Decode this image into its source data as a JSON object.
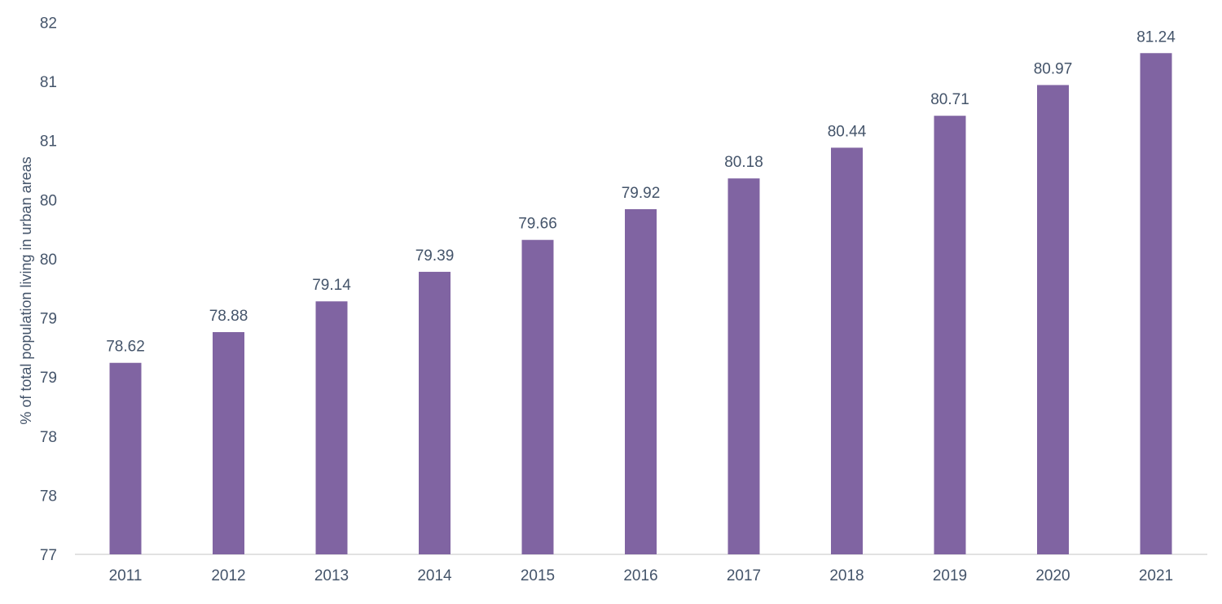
{
  "chart_data": {
    "type": "bar",
    "title": "",
    "xlabel": "",
    "ylabel": "% of total population living in urban areas",
    "categories": [
      "2011",
      "2012",
      "2013",
      "2014",
      "2015",
      "2016",
      "2017",
      "2018",
      "2019",
      "2020",
      "2021"
    ],
    "values": [
      78.62,
      78.88,
      79.14,
      79.39,
      79.66,
      79.92,
      80.18,
      80.44,
      80.71,
      80.97,
      81.24
    ],
    "data_labels": [
      "78.62",
      "78.88",
      "79.14",
      "79.39",
      "79.66",
      "79.92",
      "80.18",
      "80.44",
      "80.71",
      "80.97",
      "81.24"
    ],
    "ylim": [
      77,
      81.5
    ],
    "y_ticks": [
      77,
      77.5,
      78,
      78.5,
      79,
      79.5,
      80,
      80.5,
      81,
      81.5
    ],
    "y_tick_labels": [
      "77",
      "78",
      "78",
      "79",
      "79",
      "80",
      "80",
      "81",
      "81",
      "82"
    ],
    "grid": false,
    "legend": "none",
    "colors": {
      "bar": "#8064a2",
      "text": "#44546a",
      "axis": "#d9d9d9"
    }
  }
}
